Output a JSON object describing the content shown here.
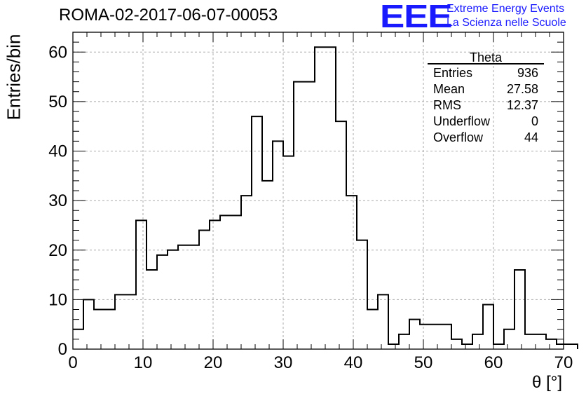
{
  "title": "ROMA-02-2017-06-07-00053",
  "logo": {
    "mark": "EEE",
    "line1": "Extreme Energy Events",
    "line2": "La Scienza nelle Scuole",
    "color": "#1a1aff"
  },
  "stats": {
    "name": "Theta",
    "rows": [
      {
        "label": "Entries",
        "value": "936"
      },
      {
        "label": "Mean",
        "value": "27.58"
      },
      {
        "label": "RMS",
        "value": "12.37"
      },
      {
        "label": "Underflow",
        "value": "0"
      },
      {
        "label": "Overflow",
        "value": "44"
      }
    ]
  },
  "chart_data": {
    "type": "bar",
    "style": "step-histogram",
    "xlabel": "θ [°]",
    "ylabel": "Entries/bin",
    "xlim": [
      0,
      70
    ],
    "ylim": [
      0,
      64
    ],
    "grid": true,
    "bin_width": 1.5,
    "x_ticks": [
      0,
      10,
      20,
      30,
      40,
      50,
      60,
      70
    ],
    "y_ticks": [
      0,
      10,
      20,
      30,
      40,
      50,
      60
    ],
    "values": [
      4,
      10,
      8,
      8,
      11,
      11,
      26,
      16,
      19,
      20,
      21,
      21,
      24,
      26,
      27,
      27,
      31,
      47,
      34,
      42,
      39,
      54,
      54,
      61,
      61,
      46,
      31,
      22,
      8,
      11,
      1,
      3,
      6,
      5,
      5,
      5,
      2,
      1,
      3,
      9,
      1,
      4,
      16,
      3,
      3,
      2,
      1,
      1
    ]
  }
}
